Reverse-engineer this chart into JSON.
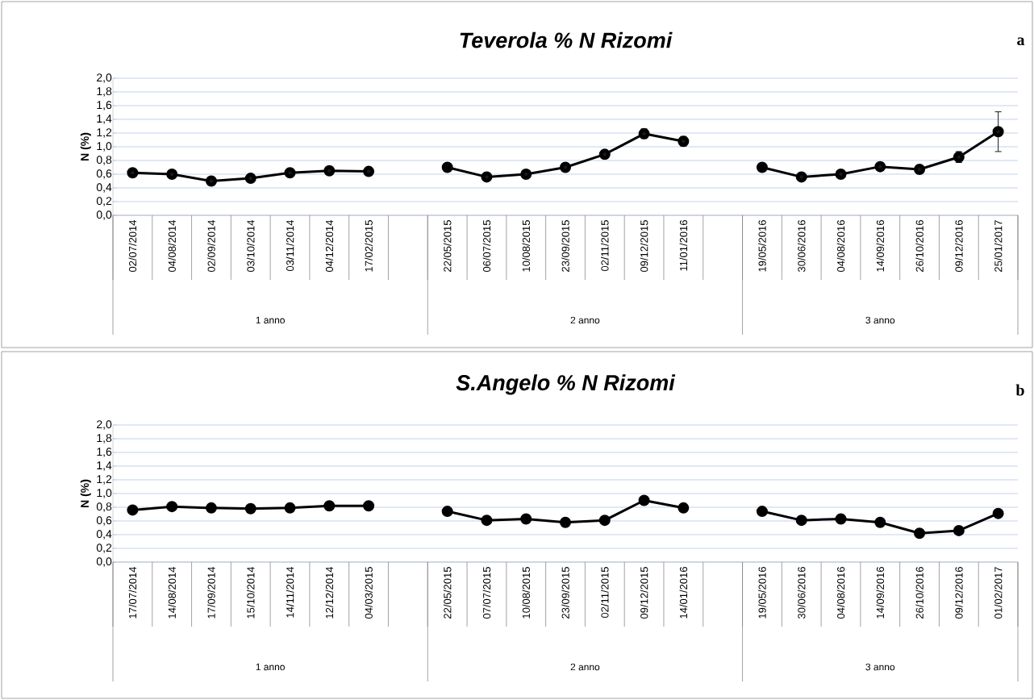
{
  "chart_data": [
    {
      "type": "line",
      "title": "Teverola % N Rizomi",
      "ylabel": "N (%)",
      "categories": [
        "02/07/2014",
        "04/08/2014",
        "02/09/2014",
        "03/10/2014",
        "03/11/2014",
        "04/12/2014",
        "17/02/2015",
        null,
        "22/05/2015",
        "06/07/2015",
        "10/08/2015",
        "23/09/2015",
        "02/11/2015",
        "09/12/2015",
        "11/01/2016",
        null,
        "19/05/2016",
        "30/06/2016",
        "04/08/2016",
        "14/09/2016",
        "26/10/2016",
        "09/12/2016",
        "25/01/2017"
      ],
      "values": [
        0.62,
        0.6,
        0.5,
        0.54,
        0.62,
        0.65,
        0.64,
        null,
        0.7,
        0.56,
        0.6,
        0.7,
        0.89,
        1.19,
        1.08,
        null,
        0.7,
        0.56,
        0.6,
        0.71,
        0.67,
        0.85,
        1.22
      ],
      "errors": [
        0.02,
        0.04,
        0.02,
        0.02,
        0.03,
        0.02,
        0.02,
        null,
        null,
        0.03,
        0.05,
        0.04,
        0.05,
        0.07,
        0.07,
        null,
        null,
        0.03,
        0.05,
        0.04,
        0.06,
        0.08,
        0.29
      ],
      "color": "#000000",
      "marker": "circle",
      "grid": "y",
      "ylim": [
        0,
        2
      ],
      "yticks": [
        {
          "value": 0,
          "label": "0,0"
        },
        {
          "value": 0.2,
          "label": "0,2"
        },
        {
          "value": 0.4,
          "label": "0,4"
        },
        {
          "value": 0.6,
          "label": "0,6"
        },
        {
          "value": 0.8,
          "label": "0,8"
        },
        {
          "value": 1.0,
          "label": "1,0"
        },
        {
          "value": 1.2,
          "label": "1,2"
        },
        {
          "value": 1.4,
          "label": "1,4"
        },
        {
          "value": 1.6,
          "label": "1,6"
        },
        {
          "value": 1.8,
          "label": "1,8"
        },
        {
          "value": 2.0,
          "label": "2,0"
        }
      ],
      "annotations": [
        "1 anno",
        "2 anno",
        "3 anno",
        "a"
      ]
    },
    {
      "type": "line",
      "title": "S.Angelo % N Rizomi",
      "ylabel": "N (%)",
      "categories": [
        "17/07/2014",
        "14/08/2014",
        "17/09/2014",
        "15/10/2014",
        "14/11/2014",
        "12/12/2014",
        "04/03/2015",
        null,
        "22/05/2015",
        "07/07/2015",
        "10/08/2015",
        "23/09/2015",
        "02/11/2015",
        "09/12/2015",
        "14/01/2016",
        null,
        "19/05/2016",
        "30/06/2016",
        "04/08/2016",
        "14/09/2016",
        "26/10/2016",
        "09/12/2016",
        "01/02/2017"
      ],
      "values": [
        0.76,
        0.81,
        0.79,
        0.78,
        0.79,
        0.82,
        0.82,
        null,
        0.74,
        0.61,
        0.63,
        0.58,
        0.61,
        0.9,
        0.79,
        null,
        0.74,
        0.61,
        0.63,
        0.58,
        0.42,
        0.46,
        0.71
      ],
      "color": "#000000",
      "marker": "circle",
      "grid": "y",
      "ylim": [
        0,
        2
      ],
      "yticks": [
        {
          "value": 0,
          "label": "0,0"
        },
        {
          "value": 0.2,
          "label": "0,2"
        },
        {
          "value": 0.4,
          "label": "0,4"
        },
        {
          "value": 0.6,
          "label": "0,6"
        },
        {
          "value": 0.8,
          "label": "0,8"
        },
        {
          "value": 1.0,
          "label": "1,0"
        },
        {
          "value": 1.2,
          "label": "1,2"
        },
        {
          "value": 1.4,
          "label": "1,4"
        },
        {
          "value": 1.6,
          "label": "1,6"
        },
        {
          "value": 1.8,
          "label": "1,8"
        },
        {
          "value": 2.0,
          "label": "2,0"
        }
      ],
      "annotations": [
        "1 anno",
        "2 anno",
        "3 anno",
        "b"
      ]
    }
  ]
}
